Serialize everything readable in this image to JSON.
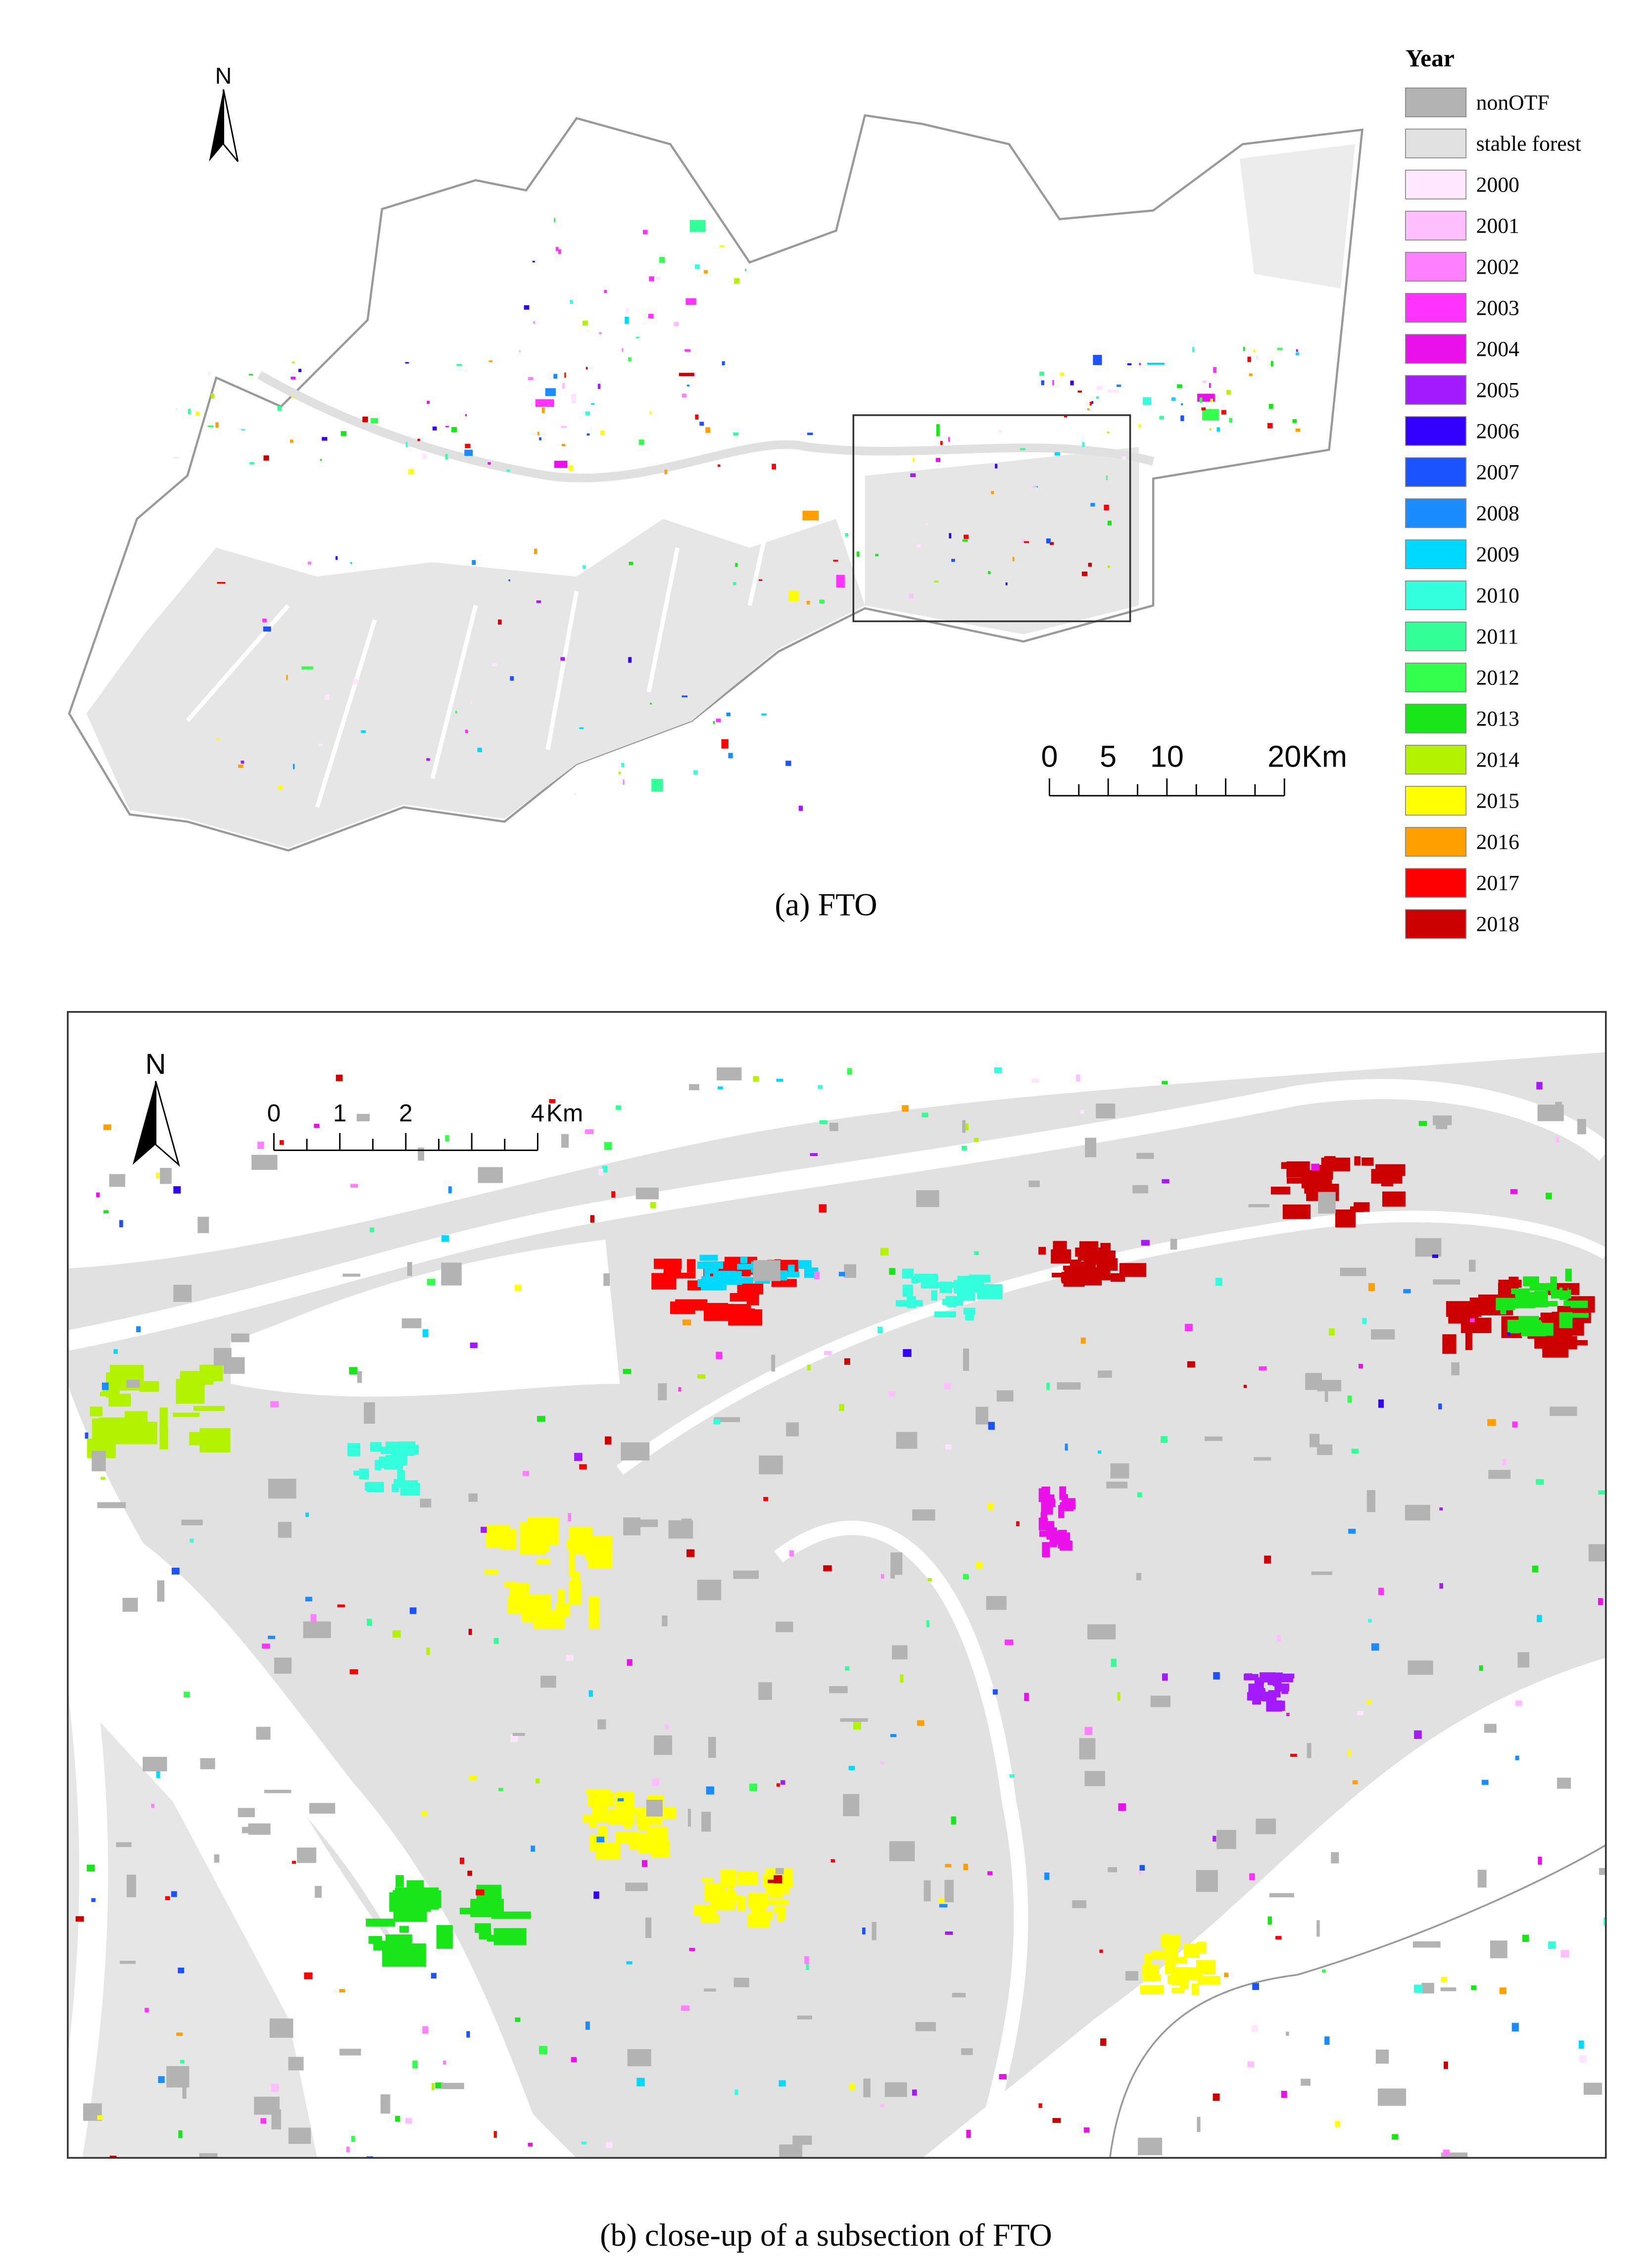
{
  "north_a": "N",
  "north_b": "N",
  "legend": {
    "title": "Year",
    "items": [
      {
        "label": "nonOTF",
        "color": "#b3b3b3"
      },
      {
        "label": "stable forest",
        "color": "#e1e1e1"
      },
      {
        "label": "2000",
        "color": "#ffe6ff"
      },
      {
        "label": "2001",
        "color": "#ffbfff"
      },
      {
        "label": "2002",
        "color": "#ff80ff"
      },
      {
        "label": "2003",
        "color": "#ff33ff"
      },
      {
        "label": "2004",
        "color": "#ea10ea"
      },
      {
        "label": "2005",
        "color": "#a31aff"
      },
      {
        "label": "2006",
        "color": "#3300ff"
      },
      {
        "label": "2007",
        "color": "#1a53ff"
      },
      {
        "label": "2008",
        "color": "#1a8cff"
      },
      {
        "label": "2009",
        "color": "#00d9ff"
      },
      {
        "label": "2010",
        "color": "#33ffdd"
      },
      {
        "label": "2011",
        "color": "#33ff99"
      },
      {
        "label": "2012",
        "color": "#33ff4d"
      },
      {
        "label": "2013",
        "color": "#19e619"
      },
      {
        "label": "2014",
        "color": "#b3f200"
      },
      {
        "label": "2015",
        "color": "#ffff00"
      },
      {
        "label": "2016",
        "color": "#ff9f00"
      },
      {
        "label": "2017",
        "color": "#ff0000"
      },
      {
        "label": "2018",
        "color": "#cc0000"
      }
    ]
  },
  "scale_bar_a": {
    "labels": [
      "0",
      "5",
      "10",
      "20"
    ],
    "unit": "Km"
  },
  "scale_bar_b": {
    "labels": [
      "0",
      "1",
      "2",
      "4"
    ],
    "unit": "Km"
  },
  "caption_a": "(a) FTO",
  "caption_b": "(b)  close-up of a subsection of FTO"
}
